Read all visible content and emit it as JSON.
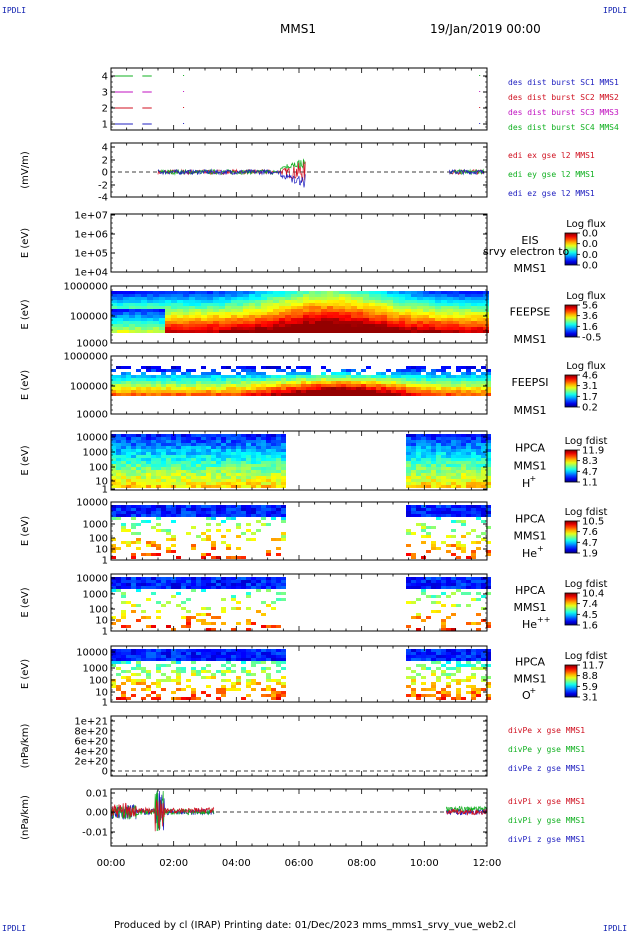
{
  "header": {
    "mission": "MMS1",
    "datetime": "19/Jan/2019 00:00",
    "corner_label": "IPDLI"
  },
  "footer": {
    "text": "Produced by cl (IRAP)   Printing date: 01/Dec/2023   mms_mms1_srvy_vue_web2.cl"
  },
  "chart_data": {
    "type": "multi-panel time series",
    "x_time": {
      "range_hours": [
        0,
        12
      ],
      "tick_labels": [
        "00:00",
        "02:00",
        "04:00",
        "06:00",
        "08:00",
        "10:00",
        "12:00"
      ]
    },
    "panels": [
      {
        "id": "burst",
        "type": "line",
        "ylabel": "",
        "y_tick_labels": [
          "4",
          "3",
          "2",
          "1"
        ],
        "legend": [
          {
            "name": "des dist burst SC1 MMS1",
            "color": "#2020c0"
          },
          {
            "name": "des dist burst SC2 MMS2",
            "color": "#d01020"
          },
          {
            "name": "des dist burst SC3 MMS3",
            "color": "#c010c0"
          },
          {
            "name": "des dist burst SC4 MMS4",
            "color": "#10b020"
          }
        ]
      },
      {
        "id": "edi",
        "type": "line",
        "ylabel": "(mV/m)",
        "ylim": [
          -4,
          4
        ],
        "y_tick_labels": [
          "4",
          "2",
          "0",
          "-2",
          "-4"
        ],
        "legend": [
          {
            "name": "edi ex gse l2 MMS1",
            "color": "#d01020"
          },
          {
            "name": "edi ey gse l2 MMS1",
            "color": "#10b020"
          },
          {
            "name": "edi ez gse l2 MMS1",
            "color": "#2020c0"
          }
        ]
      },
      {
        "id": "eis",
        "type": "heatmap",
        "ylabel": "E (eV)",
        "y_tick_labels": [
          "1e+07",
          "1e+06",
          "1e+05",
          "1e+04"
        ],
        "instrument": [
          "EIS",
          "MMS1"
        ],
        "overlay_text": "srvy electron to",
        "colorbar": {
          "title": "Log flux",
          "ticks": [
            "0.0",
            "0.0",
            "0.0",
            "0.0"
          ]
        }
      },
      {
        "id": "feepse",
        "type": "heatmap",
        "ylabel": "E (eV)",
        "y_tick_labels": [
          "1000000",
          "100000",
          "10000"
        ],
        "instrument": [
          "FEEPSE",
          "MMS1"
        ],
        "colorbar": {
          "title": "Log flux",
          "ticks": [
            "5.6",
            "3.6",
            "1.6",
            "-0.5"
          ]
        }
      },
      {
        "id": "feepsi",
        "type": "heatmap",
        "ylabel": "E (eV)",
        "y_tick_labels": [
          "1000000",
          "100000",
          "10000"
        ],
        "instrument": [
          "FEEPSI",
          "MMS1"
        ],
        "colorbar": {
          "title": "Log flux",
          "ticks": [
            "4.6",
            "3.1",
            "1.7",
            "0.2"
          ]
        }
      },
      {
        "id": "hpca_h",
        "type": "heatmap",
        "ylabel": "E (eV)",
        "y_tick_labels": [
          "10000",
          "1000",
          "100",
          "10",
          "1"
        ],
        "instrument": [
          "HPCA",
          "MMS1"
        ],
        "species": {
          "base": "H",
          "sup": "+"
        },
        "colorbar": {
          "title": "Log fdist",
          "ticks": [
            "11.9",
            "8.3",
            "4.7",
            "1.1"
          ]
        }
      },
      {
        "id": "hpca_he",
        "type": "heatmap",
        "ylabel": "E (eV)",
        "y_tick_labels": [
          "10000",
          "1000",
          "100",
          "10",
          "1"
        ],
        "instrument": [
          "HPCA",
          "MMS1"
        ],
        "species": {
          "base": "He",
          "sup": "+"
        },
        "colorbar": {
          "title": "Log fdist",
          "ticks": [
            "10.5",
            "7.6",
            "4.7",
            "1.9"
          ]
        }
      },
      {
        "id": "hpca_he2",
        "type": "heatmap",
        "ylabel": "E (eV)",
        "y_tick_labels": [
          "10000",
          "1000",
          "100",
          "10",
          "1"
        ],
        "instrument": [
          "HPCA",
          "MMS1"
        ],
        "species": {
          "base": "He",
          "sup": "++"
        },
        "colorbar": {
          "title": "Log fdist",
          "ticks": [
            "10.4",
            "7.4",
            "4.5",
            "1.6"
          ]
        }
      },
      {
        "id": "hpca_o",
        "type": "heatmap",
        "ylabel": "E (eV)",
        "y_tick_labels": [
          "10000",
          "1000",
          "100",
          "10",
          "1"
        ],
        "instrument": [
          "HPCA",
          "MMS1"
        ],
        "species": {
          "base": "O",
          "sup": "+"
        },
        "colorbar": {
          "title": "Log fdist",
          "ticks": [
            "11.7",
            "8.8",
            "5.9",
            "3.1"
          ]
        }
      },
      {
        "id": "divpe",
        "type": "line",
        "ylabel": "(nPa/km)",
        "y_tick_labels": [
          "1e+21",
          "8e+20",
          "6e+20",
          "4e+20",
          "2e+20",
          "0"
        ],
        "legend": [
          {
            "name": "divPe x gse MMS1",
            "color": "#d01020"
          },
          {
            "name": "divPe y gse MMS1",
            "color": "#10b020"
          },
          {
            "name": "divPe z gse MMS1",
            "color": "#2020c0"
          }
        ]
      },
      {
        "id": "divpi",
        "type": "line",
        "ylabel": "(nPa/km)",
        "y_tick_labels": [
          "0.01",
          "0.00",
          "-0.01"
        ],
        "legend": [
          {
            "name": "divPi x gse MMS1",
            "color": "#d01020"
          },
          {
            "name": "divPi y gse MMS1",
            "color": "#10b020"
          },
          {
            "name": "divPi z gse MMS1",
            "color": "#2020c0"
          }
        ]
      }
    ]
  }
}
